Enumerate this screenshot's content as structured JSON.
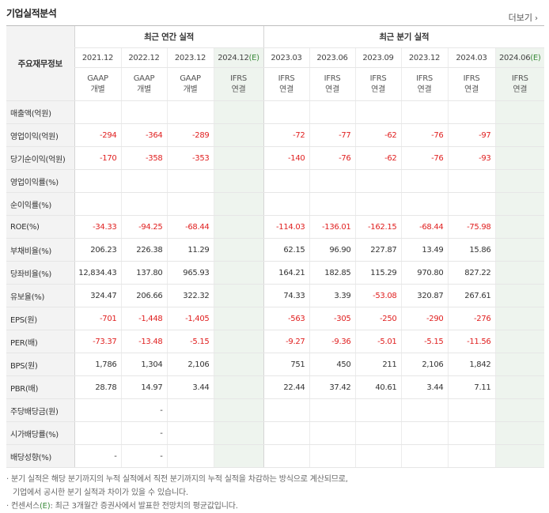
{
  "header": {
    "title": "기업실적분석",
    "more_label": "더보기",
    "more_icon": "chevron-right-icon"
  },
  "table": {
    "corner_label": "주요재무정보",
    "group_annual": "최근 연간 실적",
    "group_quarter": "최근 분기 실적",
    "periods": [
      {
        "label": "2021.12",
        "std": "GAAP",
        "basis": "개별"
      },
      {
        "label": "2022.12",
        "std": "GAAP",
        "basis": "개별"
      },
      {
        "label": "2023.12",
        "std": "GAAP",
        "basis": "개별"
      },
      {
        "label": "2024.12",
        "est": "(E)",
        "std": "IFRS",
        "basis": "연결"
      },
      {
        "label": "2023.03",
        "std": "IFRS",
        "basis": "연결"
      },
      {
        "label": "2023.06",
        "std": "IFRS",
        "basis": "연결"
      },
      {
        "label": "2023.09",
        "std": "IFRS",
        "basis": "연결"
      },
      {
        "label": "2023.12",
        "std": "IFRS",
        "basis": "연결"
      },
      {
        "label": "2024.03",
        "std": "IFRS",
        "basis": "연결"
      },
      {
        "label": "2024.06",
        "est": "(E)",
        "std": "IFRS",
        "basis": "연결"
      }
    ],
    "rows": [
      {
        "label": "매출액(억원)",
        "values": [
          "",
          "",
          "",
          "",
          "",
          "",
          "",
          "",
          "",
          ""
        ]
      },
      {
        "label": "영업이익(억원)",
        "values": [
          "-294",
          "-364",
          "-289",
          "",
          "-72",
          "-77",
          "-62",
          "-76",
          "-97",
          ""
        ]
      },
      {
        "label": "당기순이익(억원)",
        "values": [
          "-170",
          "-358",
          "-353",
          "",
          "-140",
          "-76",
          "-62",
          "-76",
          "-93",
          ""
        ]
      },
      {
        "label": "영업이익률(%)",
        "values": [
          "",
          "",
          "",
          "",
          "",
          "",
          "",
          "",
          "",
          ""
        ]
      },
      {
        "label": "순이익률(%)",
        "values": [
          "",
          "",
          "",
          "",
          "",
          "",
          "",
          "",
          "",
          ""
        ]
      },
      {
        "label": "ROE(%)",
        "values": [
          "-34.33",
          "-94.25",
          "-68.44",
          "",
          "-114.03",
          "-136.01",
          "-162.15",
          "-68.44",
          "-75.98",
          ""
        ]
      },
      {
        "label": "부채비율(%)",
        "values": [
          "206.23",
          "226.38",
          "11.29",
          "",
          "62.15",
          "96.90",
          "227.87",
          "13.49",
          "15.86",
          ""
        ]
      },
      {
        "label": "당좌비율(%)",
        "values": [
          "12,834.43",
          "137.80",
          "965.93",
          "",
          "164.21",
          "182.85",
          "115.29",
          "970.80",
          "827.22",
          ""
        ]
      },
      {
        "label": "유보율(%)",
        "values": [
          "324.47",
          "206.66",
          "322.32",
          "",
          "74.33",
          "3.39",
          "-53.08",
          "320.87",
          "267.61",
          ""
        ]
      },
      {
        "label": "EPS(원)",
        "values": [
          "-701",
          "-1,448",
          "-1,405",
          "",
          "-563",
          "-305",
          "-250",
          "-290",
          "-276",
          ""
        ]
      },
      {
        "label": "PER(배)",
        "values": [
          "-73.37",
          "-13.48",
          "-5.15",
          "",
          "-9.27",
          "-9.36",
          "-5.01",
          "-5.15",
          "-11.56",
          ""
        ]
      },
      {
        "label": "BPS(원)",
        "values": [
          "1,786",
          "1,304",
          "2,106",
          "",
          "751",
          "450",
          "211",
          "2,106",
          "1,842",
          ""
        ]
      },
      {
        "label": "PBR(배)",
        "values": [
          "28.78",
          "14.97",
          "3.44",
          "",
          "22.44",
          "37.42",
          "40.61",
          "3.44",
          "7.11",
          ""
        ]
      },
      {
        "label": "주당배당금(원)",
        "values": [
          "",
          "-",
          "",
          "",
          "",
          "",
          "",
          "",
          "",
          ""
        ]
      },
      {
        "label": "시가배당률(%)",
        "values": [
          "",
          "-",
          "",
          "",
          "",
          "",
          "",
          "",
          "",
          ""
        ]
      },
      {
        "label": "배당성향(%)",
        "values": [
          "-",
          "-",
          "",
          "",
          "",
          "",
          "",
          "",
          "",
          ""
        ]
      }
    ]
  },
  "notes": {
    "line1": "· 분기 실적은 해당 분기까지의 누적 실적에서 직전 분기까지의 누적 실적을 차감하는 방식으로 계산되므로,",
    "line2": "기업에서 공시한 분기 실적과 차이가 있을 수 있습니다.",
    "line3_prefix": "· 컨센서스",
    "line3_mark": "(E)",
    "line3_suffix": ": 최근 3개월간 증권사에서 발표한 전망치의 평균값입니다."
  },
  "colors": {
    "negative": "#e02020",
    "estimate_bg": "#eef4ee",
    "label_bg": "#f3f3f3",
    "estimate_mark": "#3a8a3a"
  }
}
